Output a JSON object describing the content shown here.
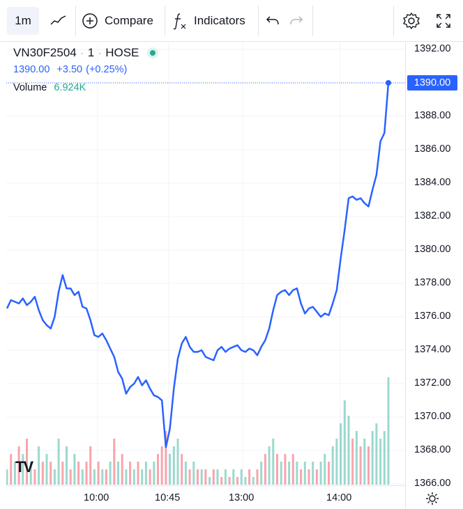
{
  "toolbar": {
    "timeframe": "1m",
    "compare_label": "Compare",
    "indicators_label": "Indicators"
  },
  "legend": {
    "symbol": "VN30F2504",
    "interval": "1",
    "exchange": "HOSE",
    "price": "1390.00",
    "change": "+3.50",
    "change_pct": "(+0.25%)",
    "volume_label": "Volume",
    "volume_value": "6.924K"
  },
  "colors": {
    "line": "#2962ff",
    "volume_up": "#22ab94",
    "volume_down": "#f23645"
  },
  "chart_data": {
    "type": "line",
    "y_ticks": [
      "1392.00",
      "1390.00",
      "1388.00",
      "1386.00",
      "1384.00",
      "1382.00",
      "1380.00",
      "1378.00",
      "1376.00",
      "1374.00",
      "1372.00",
      "1370.00",
      "1368.00",
      "1366.00"
    ],
    "x_ticks": [
      "10:00",
      "10:45",
      "13:00",
      "14:00"
    ],
    "last_price_label": "1390.00",
    "ylim": [
      1366,
      1392
    ],
    "series": [
      {
        "values": [
          1376.5,
          1377,
          1376.9,
          1376.8,
          1377.1,
          1376.7,
          1376.9,
          1377.2,
          1376.4,
          1375.8,
          1375.5,
          1375.3,
          1376,
          1377.5,
          1378.5,
          1377.7,
          1377.7,
          1377.3,
          1377.5,
          1376.6,
          1376.5,
          1375.8,
          1374.9,
          1374.8,
          1375.0,
          1374.6,
          1374.1,
          1373.6,
          1372.7,
          1372.3,
          1371.4,
          1371.8,
          1372.0,
          1372.4,
          1371.9,
          1372.2,
          1371.7,
          1371.3,
          1371.2,
          1371.0,
          1368.2,
          1369.3,
          1371.7,
          1373.5,
          1374.4,
          1374.8,
          1374.2,
          1373.9,
          1373.9,
          1374.0,
          1373.6,
          1373.5,
          1373.4,
          1374.0,
          1374.2,
          1373.9,
          1374.1,
          1374.2,
          1374.3,
          1374.0,
          1373.9,
          1374.1,
          1374.0,
          1373.7,
          1374.2,
          1374.6,
          1375.3,
          1376.4,
          1377.3,
          1377.5,
          1377.6,
          1377.3,
          1377.6,
          1377.7,
          1376.8,
          1376.2,
          1376.5,
          1376.6,
          1376.3,
          1376.0,
          1376.2,
          1376.1,
          1376.8,
          1377.6,
          1379.5,
          1381.2,
          1383.1,
          1383.2,
          1383.0,
          1383.1,
          1382.8,
          1382.6,
          1383.6,
          1384.5,
          1386.5,
          1387.0,
          1390.0
        ]
      }
    ],
    "volume": [
      {
        "v": 2,
        "up": true
      },
      {
        "v": 4,
        "up": false
      },
      {
        "v": 3,
        "up": true
      },
      {
        "v": 5,
        "up": false
      },
      {
        "v": 4,
        "up": true
      },
      {
        "v": 6,
        "up": false
      },
      {
        "v": 3,
        "up": true
      },
      {
        "v": 2,
        "up": false
      },
      {
        "v": 5,
        "up": true
      },
      {
        "v": 3,
        "up": false
      },
      {
        "v": 4,
        "up": true
      },
      {
        "v": 3,
        "up": false
      },
      {
        "v": 2,
        "up": true
      },
      {
        "v": 6,
        "up": true
      },
      {
        "v": 3,
        "up": false
      },
      {
        "v": 5,
        "up": true
      },
      {
        "v": 2,
        "up": false
      },
      {
        "v": 4,
        "up": true
      },
      {
        "v": 3,
        "up": false
      },
      {
        "v": 2,
        "up": true
      },
      {
        "v": 3,
        "up": false
      },
      {
        "v": 5,
        "up": false
      },
      {
        "v": 2,
        "up": true
      },
      {
        "v": 3,
        "up": false
      },
      {
        "v": 2,
        "up": true
      },
      {
        "v": 2,
        "up": false
      },
      {
        "v": 3,
        "up": true
      },
      {
        "v": 6,
        "up": false
      },
      {
        "v": 3,
        "up": true
      },
      {
        "v": 4,
        "up": false
      },
      {
        "v": 2,
        "up": true
      },
      {
        "v": 3,
        "up": false
      },
      {
        "v": 2,
        "up": true
      },
      {
        "v": 3,
        "up": false
      },
      {
        "v": 2,
        "up": true
      },
      {
        "v": 3,
        "up": true
      },
      {
        "v": 2,
        "up": false
      },
      {
        "v": 3,
        "up": true
      },
      {
        "v": 4,
        "up": false
      },
      {
        "v": 5,
        "up": false
      },
      {
        "v": 7,
        "up": false
      },
      {
        "v": 4,
        "up": true
      },
      {
        "v": 5,
        "up": true
      },
      {
        "v": 6,
        "up": true
      },
      {
        "v": 4,
        "up": false
      },
      {
        "v": 3,
        "up": true
      },
      {
        "v": 2,
        "up": false
      },
      {
        "v": 3,
        "up": true
      },
      {
        "v": 2,
        "up": false
      },
      {
        "v": 2,
        "up": true
      },
      {
        "v": 2,
        "up": false
      },
      {
        "v": 1,
        "up": true
      },
      {
        "v": 2,
        "up": false
      },
      {
        "v": 2,
        "up": true
      },
      {
        "v": 1,
        "up": false
      },
      {
        "v": 2,
        "up": true
      },
      {
        "v": 1,
        "up": false
      },
      {
        "v": 2,
        "up": true
      },
      {
        "v": 1,
        "up": false
      },
      {
        "v": 2,
        "up": true
      },
      {
        "v": 1,
        "up": true
      },
      {
        "v": 2,
        "up": false
      },
      {
        "v": 1,
        "up": true
      },
      {
        "v": 2,
        "up": false
      },
      {
        "v": 3,
        "up": true
      },
      {
        "v": 4,
        "up": false
      },
      {
        "v": 5,
        "up": true
      },
      {
        "v": 6,
        "up": true
      },
      {
        "v": 4,
        "up": false
      },
      {
        "v": 3,
        "up": true
      },
      {
        "v": 4,
        "up": false
      },
      {
        "v": 3,
        "up": true
      },
      {
        "v": 4,
        "up": false
      },
      {
        "v": 3,
        "up": true
      },
      {
        "v": 2,
        "up": false
      },
      {
        "v": 3,
        "up": true
      },
      {
        "v": 2,
        "up": false
      },
      {
        "v": 3,
        "up": true
      },
      {
        "v": 2,
        "up": false
      },
      {
        "v": 3,
        "up": true
      },
      {
        "v": 4,
        "up": true
      },
      {
        "v": 3,
        "up": false
      },
      {
        "v": 5,
        "up": true
      },
      {
        "v": 6,
        "up": true
      },
      {
        "v": 8,
        "up": true
      },
      {
        "v": 11,
        "up": true
      },
      {
        "v": 9,
        "up": true
      },
      {
        "v": 6,
        "up": false
      },
      {
        "v": 7,
        "up": true
      },
      {
        "v": 5,
        "up": false
      },
      {
        "v": 6,
        "up": true
      },
      {
        "v": 5,
        "up": false
      },
      {
        "v": 7,
        "up": true
      },
      {
        "v": 8,
        "up": true
      },
      {
        "v": 6,
        "up": true
      },
      {
        "v": 7,
        "up": true
      },
      {
        "v": 14,
        "up": true
      }
    ]
  }
}
